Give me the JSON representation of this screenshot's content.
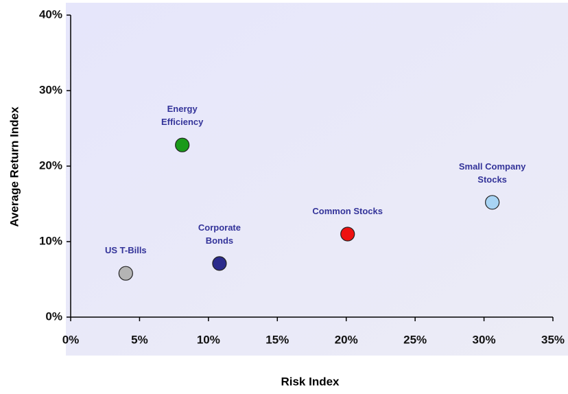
{
  "chart_data": {
    "type": "scatter",
    "xlabel": "Risk Index",
    "ylabel": "Average Return Index",
    "xlim": [
      0,
      35
    ],
    "ylim": [
      0,
      40
    ],
    "xticks": [
      {
        "value": 0,
        "label": "0%"
      },
      {
        "value": 5,
        "label": "5%"
      },
      {
        "value": 10,
        "label": "10%"
      },
      {
        "value": 15,
        "label": "15%"
      },
      {
        "value": 20,
        "label": "20%"
      },
      {
        "value": 25,
        "label": "25%"
      },
      {
        "value": 30,
        "label": "30%"
      },
      {
        "value": 35,
        "label": "35%"
      }
    ],
    "yticks": [
      {
        "value": 0,
        "label": "0%"
      },
      {
        "value": 10,
        "label": "10%"
      },
      {
        "value": 20,
        "label": "20%"
      },
      {
        "value": 30,
        "label": "30%"
      },
      {
        "value": 40,
        "label": "40%"
      }
    ],
    "series": [
      {
        "name": "US T-Bills",
        "color": "#b4b4b4",
        "x": [
          4.0
        ],
        "values": [
          5.8
        ]
      },
      {
        "name": "Corporate Bonds",
        "color": "#2b2b8c",
        "x": [
          10.8
        ],
        "values": [
          7.1
        ]
      },
      {
        "name": "Energy Efficiency",
        "color": "#1a9a1a",
        "x": [
          8.1
        ],
        "values": [
          22.8
        ]
      },
      {
        "name": "Common Stocks",
        "color": "#ee1111",
        "x": [
          20.1
        ],
        "values": [
          11.0
        ]
      },
      {
        "name": "Small Company Stocks",
        "color": "#a8d4f4",
        "x": [
          30.6
        ],
        "values": [
          15.2
        ]
      }
    ]
  }
}
